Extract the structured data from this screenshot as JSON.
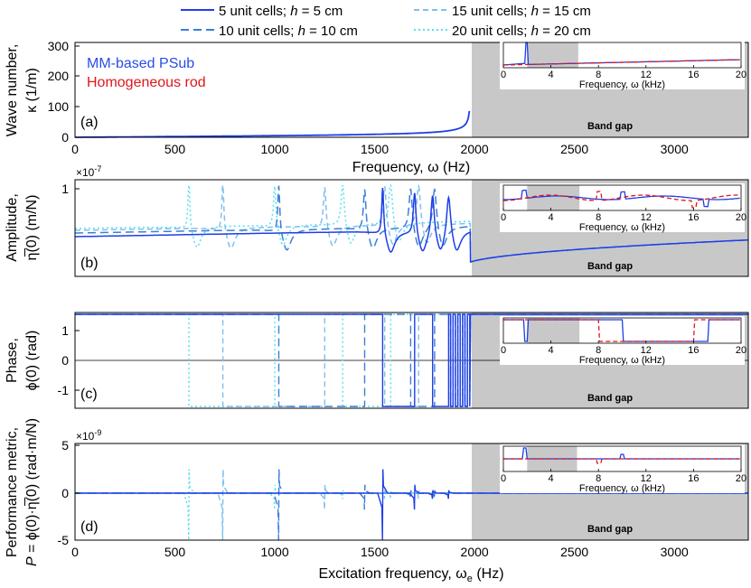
{
  "legend": {
    "entries": [
      {
        "n": "5",
        "v": "5",
        "style": "solid",
        "color": "#1f3ee6"
      },
      {
        "n": "10",
        "v": "10",
        "style": "dashed",
        "color": "#3a7fd6"
      },
      {
        "n": "15",
        "v": "15",
        "style": "dashed",
        "color": "#7fbfee"
      },
      {
        "n": "20",
        "v": "20",
        "style": "dotted",
        "color": "#56dff0"
      }
    ],
    "unit_cells_text": "unit cells;",
    "h_symbol": "h",
    "eq_text": "=",
    "unit": "cm"
  },
  "shared": {
    "band_gap_label": "Band gap",
    "band_gap_start_hz": 1980,
    "xlim": [
      0,
      3370
    ],
    "xticks": [
      "0",
      "500",
      "1000",
      "1500",
      "2000",
      "2500",
      "3000"
    ],
    "xlabel_top": "Frequency, ω (Hz)",
    "xlabel_bottom": "Excitation frequency, ω",
    "xlabel_bottom_sub": "e",
    "xlabel_bottom_unit": "(Hz)"
  },
  "inset": {
    "xticks": [
      "0",
      "4",
      "8",
      "12",
      "16",
      "20"
    ],
    "xlabel": "Frequency, ω (kHz)",
    "xlim_khz": [
      0,
      20
    ],
    "gap_khz": {
      "a": [
        2,
        6.3
      ],
      "b": [
        2,
        6.4
      ],
      "c": [
        2,
        6.4
      ],
      "d": [
        2,
        6.2
      ]
    }
  },
  "chart_data": [
    {
      "type": "line",
      "panel_label": "(a)",
      "ylabel_line1": "Wave number,",
      "ylabel_line2": "κ (1/m)",
      "ylim": [
        0,
        310
      ],
      "yticks": [
        "0",
        "100",
        "200",
        "300"
      ],
      "annotation_psub": "MM-based PSub",
      "annotation_rod": "Homogeneous rod",
      "series": [
        {
          "name": "MM-based PSub",
          "description": "κ grows from 0 to ~40 at 1500 Hz, diverges near 1980 Hz"
        }
      ]
    },
    {
      "type": "line",
      "panel_label": "(b)",
      "ylabel_line1": "Amplitude,",
      "ylabel_line2": "η̅(0) (m/N)",
      "y_exponent": "×10",
      "y_exponent_power": "-7",
      "yticks": [
        "1"
      ],
      "resonances_hz": {
        "5": [
          1540,
          1700,
          1790,
          1870
        ],
        "10": [
          1020,
          1450,
          1680,
          1800
        ],
        "15": [
          740,
          1250,
          1550,
          1720
        ],
        "20": [
          570,
          1000,
          1340,
          1580
        ]
      }
    },
    {
      "type": "line",
      "panel_label": "(c)",
      "ylabel_line1": "Phase,",
      "ylabel_line2": "ϕ(0) (rad)",
      "ylim": [
        -1.57,
        1.57
      ],
      "yticks": [
        "1",
        "0",
        "-1"
      ]
    },
    {
      "type": "line",
      "panel_label": "(d)",
      "ylabel_line1": "Performance metric,",
      "ylabel_line2_prefix": "P",
      "ylabel_line2_rest": "= ϕ(0)·η̅(0) (rad·m/N)",
      "y_exponent": "×10",
      "y_exponent_power": "-9",
      "ylim": [
        -5,
        5
      ],
      "yticks": [
        "5",
        "0",
        "-5"
      ]
    }
  ]
}
